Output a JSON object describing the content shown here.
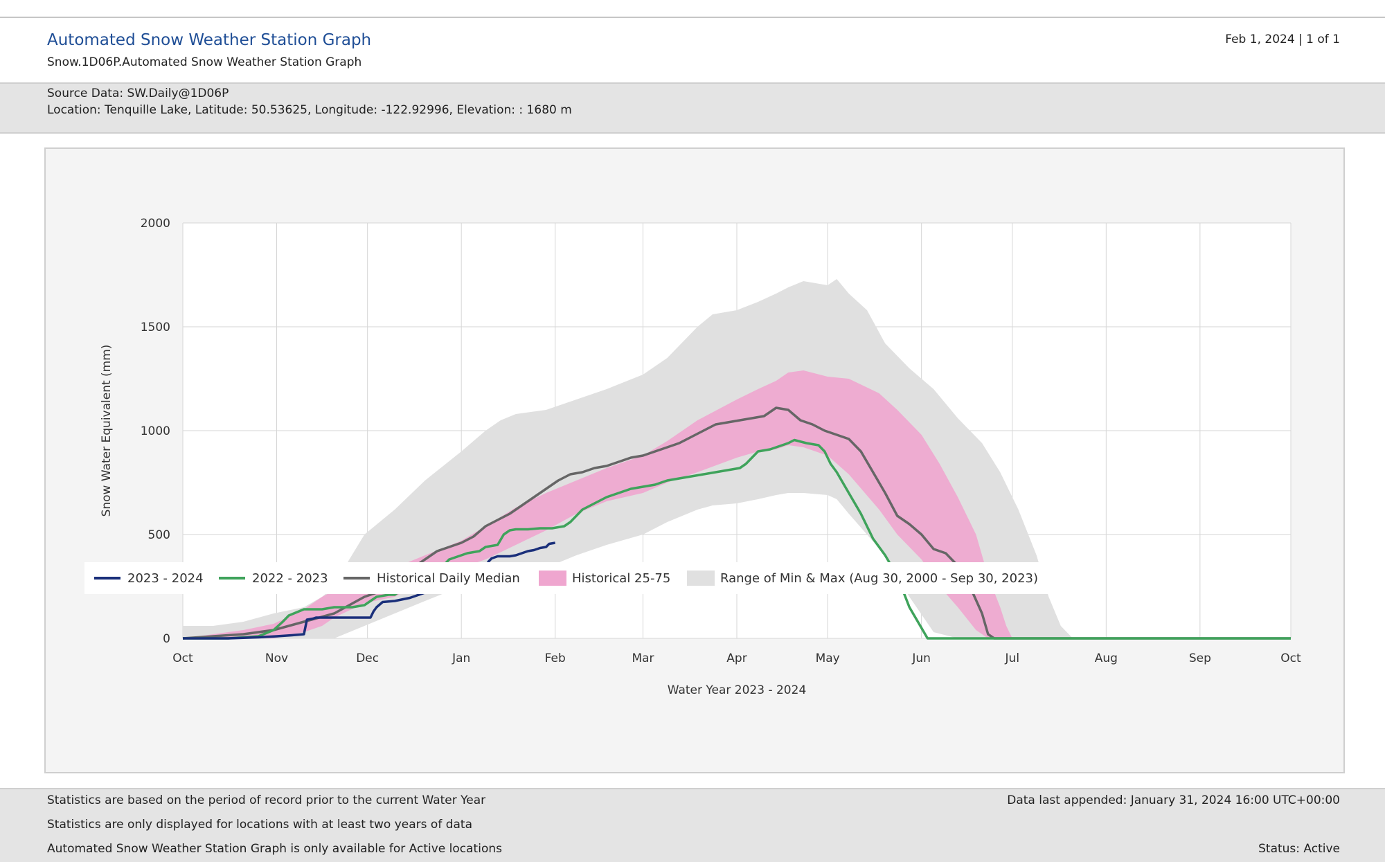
{
  "header": {
    "title": "Automated Snow Weather Station Graph",
    "subtitle": "Snow.1D06P.Automated Snow Weather Station Graph",
    "page_info": "Feb 1, 2024 | 1 of 1"
  },
  "source": {
    "source_line": "Source Data: SW.Daily@1D06P",
    "location_line": "Location: Tenquille Lake, Latitude: 50.53625, Longitude: -122.92996, Elevation: : 1680 m"
  },
  "footer": {
    "note1": "Statistics are based on the period of record prior to the current Water Year",
    "note2": "Statistics are only displayed for locations with at least two years of data",
    "note3": "Automated Snow Weather Station Graph is only available for Active locations",
    "last_appended": "Data last appended: January 31, 2024 16:00 UTC+00:00",
    "status": "Status: Active"
  },
  "colors": {
    "current": "#1a2f7a",
    "previous": "#3fa35b",
    "median": "#666666",
    "p25_75": "#efa6cf",
    "minmax": "#e0e0e0",
    "grid": "#d6d6d6"
  },
  "chart_data": {
    "type": "area",
    "xlabel": "Water Year 2023 - 2024",
    "ylabel": "Snow Water Equivalent (mm)",
    "ylim": [
      0,
      2000
    ],
    "yticks": [
      0,
      500,
      1000,
      1500,
      2000
    ],
    "x_ticks": [
      "Oct",
      "Nov",
      "Dec",
      "Jan",
      "Feb",
      "Mar",
      "Apr",
      "May",
      "Jun",
      "Jul",
      "Aug",
      "Sep",
      "Oct"
    ],
    "x_tick_days": [
      0,
      31,
      61,
      92,
      123,
      152,
      183,
      213,
      244,
      274,
      305,
      336,
      366
    ],
    "grid": true,
    "legend_position": "bottom",
    "series": [
      {
        "name": "2023 - 2024",
        "kind": "line",
        "x": [
          0,
          15,
          25,
          31,
          36,
          40,
          41,
          43,
          44,
          45,
          46,
          47,
          49,
          52,
          55,
          58,
          60,
          62,
          63,
          64,
          66,
          70,
          75,
          80,
          85,
          86,
          88,
          90,
          92,
          94,
          96,
          98,
          100,
          101,
          102,
          104,
          106,
          108,
          110,
          112,
          114,
          116,
          118,
          120,
          121,
          123
        ],
        "y": [
          0,
          0,
          5,
          10,
          15,
          20,
          90,
          95,
          100,
          100,
          100,
          100,
          100,
          100,
          100,
          100,
          100,
          100,
          130,
          150,
          175,
          180,
          195,
          220,
          230,
          260,
          270,
          290,
          300,
          310,
          320,
          330,
          345,
          370,
          385,
          395,
          395,
          395,
          400,
          410,
          420,
          425,
          435,
          440,
          455,
          460
        ]
      },
      {
        "name": "2022 - 2023",
        "kind": "line",
        "x": [
          0,
          15,
          25,
          30,
          33,
          35,
          40,
          46,
          50,
          56,
          60,
          64,
          68,
          70,
          74,
          78,
          82,
          84,
          86,
          88,
          90,
          92,
          94,
          98,
          100,
          104,
          106,
          108,
          110,
          114,
          118,
          122,
          126,
          128,
          130,
          132,
          136,
          140,
          144,
          148,
          152,
          156,
          160,
          164,
          168,
          172,
          176,
          180,
          184,
          186,
          190,
          194,
          198,
          200,
          202,
          206,
          210,
          212,
          214,
          216,
          220,
          224,
          228,
          232,
          236,
          240,
          244,
          246,
          248,
          250,
          252,
          366
        ],
        "y": [
          0,
          0,
          10,
          40,
          80,
          110,
          140,
          140,
          150,
          150,
          160,
          200,
          210,
          210,
          250,
          260,
          270,
          300,
          350,
          380,
          390,
          400,
          410,
          420,
          440,
          450,
          500,
          520,
          525,
          525,
          530,
          530,
          540,
          560,
          590,
          620,
          650,
          680,
          700,
          720,
          730,
          740,
          760,
          770,
          780,
          790,
          800,
          810,
          820,
          840,
          900,
          910,
          930,
          940,
          955,
          940,
          930,
          900,
          840,
          800,
          700,
          600,
          480,
          400,
          300,
          150,
          50,
          0,
          0,
          0,
          0,
          0
        ]
      },
      {
        "name": "Historical Daily Median",
        "kind": "line",
        "x": [
          0,
          10,
          20,
          30,
          40,
          50,
          55,
          60,
          64,
          68,
          72,
          76,
          80,
          84,
          88,
          92,
          96,
          100,
          104,
          108,
          112,
          116,
          120,
          124,
          128,
          132,
          136,
          140,
          144,
          148,
          152,
          156,
          160,
          164,
          168,
          172,
          176,
          180,
          184,
          188,
          192,
          196,
          200,
          204,
          208,
          212,
          216,
          220,
          224,
          228,
          232,
          236,
          240,
          244,
          248,
          252,
          256,
          260,
          264,
          266,
          268,
          366
        ],
        "y": [
          0,
          10,
          20,
          40,
          80,
          120,
          160,
          200,
          220,
          240,
          300,
          340,
          380,
          420,
          440,
          460,
          490,
          540,
          570,
          600,
          640,
          680,
          720,
          760,
          790,
          800,
          820,
          830,
          850,
          870,
          880,
          900,
          920,
          940,
          970,
          1000,
          1030,
          1040,
          1050,
          1060,
          1070,
          1110,
          1100,
          1050,
          1030,
          1000,
          980,
          960,
          900,
          800,
          700,
          590,
          550,
          500,
          430,
          410,
          350,
          250,
          120,
          20,
          0,
          0
        ]
      },
      {
        "name": "Historical 25-75",
        "kind": "band",
        "x": [
          0,
          10,
          20,
          30,
          40,
          46,
          50,
          60,
          70,
          80,
          92,
          100,
          110,
          120,
          130,
          140,
          152,
          160,
          170,
          183,
          190,
          196,
          200,
          205,
          213,
          220,
          230,
          236,
          244,
          250,
          256,
          262,
          266,
          270,
          272,
          274,
          366
        ],
        "low": [
          0,
          0,
          0,
          0,
          30,
          60,
          100,
          170,
          200,
          280,
          340,
          380,
          450,
          520,
          600,
          660,
          700,
          750,
          800,
          870,
          900,
          910,
          930,
          920,
          880,
          790,
          620,
          500,
          380,
          250,
          150,
          40,
          0,
          0,
          0,
          0,
          0
        ],
        "high": [
          0,
          20,
          40,
          70,
          140,
          200,
          230,
          290,
          340,
          400,
          470,
          540,
          630,
          700,
          760,
          820,
          880,
          950,
          1050,
          1150,
          1200,
          1240,
          1280,
          1290,
          1260,
          1250,
          1180,
          1100,
          980,
          840,
          680,
          500,
          300,
          150,
          60,
          0,
          0
        ]
      },
      {
        "name": "Range of Min & Max (Aug 30, 2000 - Sep 30, 2023)",
        "kind": "band",
        "x": [
          0,
          10,
          20,
          30,
          40,
          46,
          50,
          55,
          60,
          70,
          80,
          92,
          100,
          105,
          110,
          120,
          130,
          140,
          152,
          160,
          170,
          175,
          183,
          190,
          196,
          200,
          205,
          213,
          216,
          220,
          226,
          232,
          240,
          248,
          256,
          264,
          270,
          276,
          282,
          286,
          290,
          294,
          300,
          305,
          366
        ],
        "low": [
          0,
          0,
          0,
          0,
          0,
          0,
          0,
          30,
          60,
          120,
          180,
          250,
          300,
          330,
          340,
          340,
          400,
          450,
          500,
          560,
          620,
          640,
          650,
          670,
          690,
          700,
          700,
          690,
          670,
          600,
          500,
          400,
          200,
          30,
          0,
          0,
          0,
          0,
          0,
          0,
          0,
          0,
          0,
          0,
          0
        ],
        "high": [
          60,
          60,
          80,
          120,
          150,
          200,
          250,
          380,
          500,
          620,
          760,
          900,
          1000,
          1050,
          1080,
          1100,
          1150,
          1200,
          1270,
          1350,
          1500,
          1560,
          1580,
          1620,
          1660,
          1690,
          1720,
          1700,
          1730,
          1660,
          1580,
          1420,
          1300,
          1200,
          1060,
          940,
          800,
          620,
          400,
          200,
          60,
          0,
          0,
          0,
          0
        ]
      }
    ],
    "legend": [
      "2023 - 2024",
      "2022 - 2023",
      "Historical Daily Median",
      "Historical 25-75",
      "Range of Min & Max (Aug 30, 2000 - Sep 30, 2023)"
    ]
  }
}
